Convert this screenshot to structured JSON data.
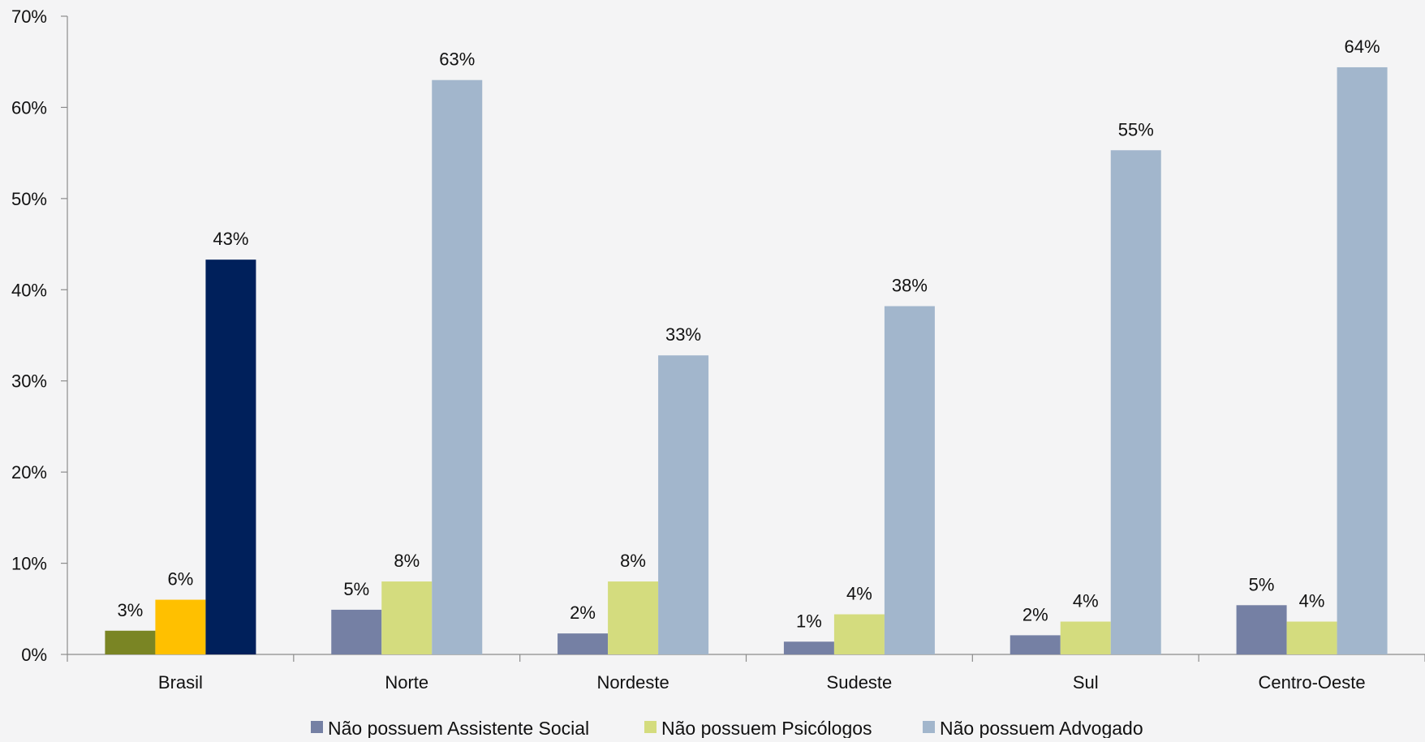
{
  "chart_data": {
    "type": "bar",
    "title": "",
    "xlabel": "",
    "ylabel": "",
    "ylim": [
      0,
      0.7
    ],
    "y_ticks": [
      0,
      0.1,
      0.2,
      0.3,
      0.4,
      0.5,
      0.6,
      0.7
    ],
    "y_tick_labels": [
      "0%",
      "10%",
      "20%",
      "30%",
      "40%",
      "50%",
      "60%",
      "70%"
    ],
    "grid": false,
    "legend_position": "bottom",
    "categories": [
      "Brasil",
      "Norte",
      "Nordeste",
      "Sudeste",
      "Sul",
      "Centro-Oeste"
    ],
    "series": [
      {
        "name": "Não possuem Assistente Social",
        "color": "#7580a4",
        "values": [
          0.026,
          0.049,
          0.023,
          0.014,
          0.021,
          0.054
        ],
        "labels": [
          "3%",
          "5%",
          "2%",
          "1%",
          "2%",
          "5%"
        ]
      },
      {
        "name": "Não possuem Psicólogos",
        "color": "#d4dc7e",
        "values": [
          0.06,
          0.08,
          0.08,
          0.044,
          0.036,
          0.036
        ],
        "labels": [
          "6%",
          "8%",
          "8%",
          "4%",
          "4%",
          "4%"
        ]
      },
      {
        "name": "Não possuem Advogado",
        "color": "#a2b6cc",
        "values": [
          0.433,
          0.63,
          0.328,
          0.382,
          0.553,
          0.644
        ],
        "labels": [
          "43%",
          "63%",
          "33%",
          "38%",
          "55%",
          "64%"
        ]
      }
    ],
    "highlight_category": {
      "category": "Brasil",
      "colors": [
        "#7a8524",
        "#ffc000",
        "#00205b"
      ]
    }
  }
}
